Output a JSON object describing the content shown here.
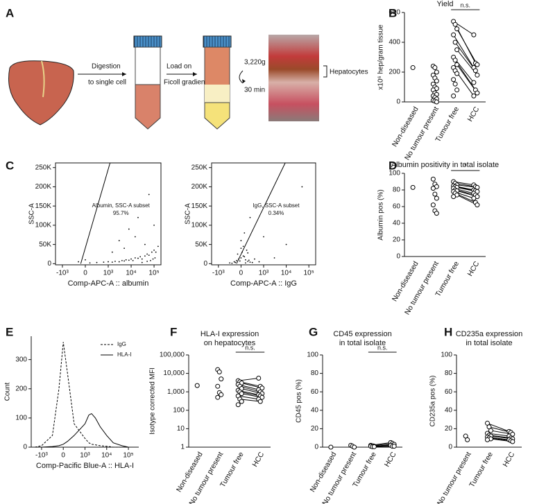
{
  "panel_labels": [
    "A",
    "B",
    "C",
    "D",
    "E",
    "F",
    "G",
    "H"
  ],
  "diagram": {
    "step1": [
      "Digestion",
      "to single cell"
    ],
    "step2": [
      "Load on",
      "Ficoll gradients"
    ],
    "spin": [
      "3,220g",
      "30 min"
    ],
    "fraction": "Hepatocytes"
  },
  "chart_data": [
    {
      "type": "dot",
      "title": "Yield",
      "ylabel": "x10⁶ hep/gram tissue",
      "categories": [
        "Non-diseased",
        "No tumour present",
        "Tumour free",
        "HCC"
      ],
      "values": [
        [
          230
        ],
        [
          240,
          230,
          200,
          180,
          160,
          140,
          120,
          100,
          90,
          80,
          60,
          50,
          40,
          30,
          20,
          10,
          5,
          0
        ],
        [
          540,
          520,
          490,
          450,
          400,
          350,
          300,
          280,
          250,
          230,
          210,
          190,
          150,
          120,
          80,
          40
        ],
        [
          450,
          260,
          250,
          230,
          210,
          180,
          130,
          80,
          60,
          40
        ]
      ],
      "ylim": [
        0,
        600
      ],
      "yticks": [
        0,
        200,
        400,
        600
      ],
      "paired": true,
      "annotation": "n.s.",
      "marker_color": "#000000"
    },
    {
      "type": "flow",
      "ylabel": "SSC-A",
      "xlabel": "Comp-APC-A :: albumin",
      "gate_label": [
        "Albumin, SSC-A subset",
        "95.7%"
      ],
      "xscale": "biexponential",
      "xlim": [
        -2000,
        200000
      ],
      "xticks": [
        {
          "value": -1000,
          "label": "-10³"
        },
        0,
        {
          "value": 1000,
          "label": "10³"
        },
        {
          "value": 10000,
          "label": "10⁴"
        },
        {
          "value": 100000,
          "label": "10⁵"
        }
      ],
      "ylim": [
        -3000,
        262144
      ],
      "yticks": [
        0,
        {
          "value": 50000,
          "label": "50K"
        },
        {
          "value": 100000,
          "label": "100K"
        },
        {
          "value": 150000,
          "label": "150K"
        },
        {
          "value": 200000,
          "label": "200K"
        },
        {
          "value": 250000,
          "label": "250K"
        }
      ],
      "x": [
        200,
        500,
        800,
        1000,
        1500,
        2000,
        3000,
        4000,
        5000,
        6000,
        8000,
        10000,
        12000,
        15000,
        20000,
        25000,
        30000,
        40000,
        50000,
        60000,
        80000,
        100000,
        120000,
        150000,
        30000,
        50000,
        70000,
        90000,
        110000,
        3000,
        8000,
        20000,
        60000,
        1500,
        5000,
        15000,
        40000,
        100000,
        0,
        -300
      ],
      "y": [
        2000,
        3000,
        4000,
        5000,
        4000,
        6000,
        5000,
        8000,
        7000,
        10000,
        9000,
        12000,
        8000,
        15000,
        14000,
        18000,
        12000,
        20000,
        25000,
        22000,
        30000,
        35000,
        30000,
        45000,
        3000,
        6000,
        8000,
        12000,
        15000,
        60000,
        90000,
        120000,
        180000,
        30000,
        40000,
        70000,
        50000,
        100000,
        10000,
        5000
      ],
      "gate": {
        "x": [
          -200,
          1200,
          200000
        ],
        "y": [
          0,
          262144,
          262144
        ]
      }
    },
    {
      "type": "flow",
      "ylabel": "SSC-A",
      "xlabel": "Comp-APC-A :: IgG",
      "gate_label": [
        "IgG, SSC-A subset",
        "0.34%"
      ],
      "xscale": "biexponential",
      "xlim": [
        -2000,
        200000
      ],
      "xticks": [
        {
          "value": -1000,
          "label": "-10³"
        },
        0,
        {
          "value": 1000,
          "label": "10³"
        },
        {
          "value": 10000,
          "label": "10⁴"
        },
        {
          "value": 100000,
          "label": "10⁵"
        }
      ],
      "ylim": [
        -3000,
        262144
      ],
      "yticks": [
        0,
        {
          "value": 50000,
          "label": "50K"
        },
        {
          "value": 100000,
          "label": "100K"
        },
        {
          "value": 150000,
          "label": "150K"
        },
        {
          "value": 200000,
          "label": "200K"
        },
        {
          "value": 250000,
          "label": "250K"
        }
      ],
      "x": [
        -500,
        -300,
        -200,
        -100,
        0,
        100,
        200,
        300,
        400,
        500,
        -400,
        -150,
        50,
        150,
        250,
        350,
        0,
        100,
        -50,
        200,
        600,
        800,
        -250,
        300,
        0,
        150,
        3000,
        10000,
        50000,
        400,
        1000
      ],
      "y": [
        2000,
        5000,
        8000,
        12000,
        15000,
        20000,
        10000,
        6000,
        4000,
        3000,
        1000,
        25000,
        30000,
        18000,
        35000,
        9000,
        40000,
        45000,
        7000,
        2000,
        12000,
        5000,
        3000,
        28000,
        60000,
        80000,
        15000,
        50000,
        200000,
        120000,
        70000
      ],
      "gate": {
        "x": [
          -200,
          9000,
          200000
        ],
        "y": [
          0,
          262144,
          262144
        ]
      }
    },
    {
      "type": "dot",
      "title": "Albumin positivity in total isolate",
      "ylabel": "Albumin pos (%)",
      "categories": [
        "Non-diseased",
        "No tumour present",
        "Tumour free",
        "HCC"
      ],
      "values": [
        [
          83
        ],
        [
          93,
          87,
          84,
          82,
          75,
          70,
          62,
          55,
          52
        ],
        [
          90,
          88,
          86,
          85,
          84,
          83,
          82,
          80,
          79,
          78,
          76,
          74,
          72
        ],
        [
          86,
          84,
          83,
          80,
          79,
          78,
          76,
          74,
          72,
          70,
          65,
          62
        ]
      ],
      "ylim": [
        0,
        100
      ],
      "yticks": [
        0,
        20,
        40,
        60,
        80,
        100
      ],
      "paired": true,
      "annotation": "*",
      "marker_color": "#000000"
    },
    {
      "type": "line",
      "ylabel": "Count",
      "xlabel": "Comp-Pacific Blue-A :: HLA-I",
      "xscale": "biexponential",
      "xlim": [
        -3000,
        300000
      ],
      "xticks": [
        {
          "value": -1000,
          "label": "-10³"
        },
        0,
        {
          "value": 1000,
          "label": "10³"
        },
        {
          "value": 10000,
          "label": "10⁴"
        },
        {
          "value": 100000,
          "label": "10⁵"
        }
      ],
      "ylim": [
        0,
        380
      ],
      "yticks": [
        0,
        100,
        200,
        300
      ],
      "legend": "top-right",
      "x": [
        -2000,
        -1000,
        -500,
        -200,
        0,
        200,
        500,
        1000,
        1500,
        2000,
        3000,
        5000,
        10000,
        20000,
        50000,
        100000
      ],
      "series": [
        {
          "name": "IgG",
          "color": "#000000",
          "line_style": "dashed",
          "values": [
            0,
            5,
            40,
            200,
            360,
            250,
            80,
            30,
            15,
            10,
            8,
            5,
            3,
            0,
            0,
            0
          ]
        },
        {
          "name": "HLA-I",
          "color": "#000000",
          "line_style": "solid",
          "values": [
            0,
            0,
            2,
            5,
            10,
            20,
            40,
            80,
            110,
            115,
            100,
            70,
            40,
            15,
            5,
            0
          ]
        }
      ]
    },
    {
      "type": "dot",
      "title": [
        "HLA-I expression",
        "on hepatocytes"
      ],
      "ylabel": "Isotype corrected MFI",
      "log": true,
      "categories": [
        "Non-diseased",
        "No tumour present",
        "Tumour free",
        "HCC"
      ],
      "values": [
        [
          2200
        ],
        [
          16000,
          12000,
          5000,
          2000,
          900,
          700,
          500
        ],
        [
          4000,
          3500,
          3000,
          2500,
          2000,
          1500,
          1200,
          1000,
          800,
          600,
          400,
          300,
          200
        ],
        [
          5500,
          2000,
          1600,
          1300,
          1000,
          800,
          700,
          600,
          500,
          400,
          300
        ]
      ],
      "ylim": [
        1,
        100000
      ],
      "yticks": [
        1,
        10,
        100,
        {
          "value": 1000,
          "label": "1,000"
        },
        {
          "value": 10000,
          "label": "10,000"
        },
        {
          "value": 100000,
          "label": "100,000"
        }
      ],
      "paired": true,
      "annotation": "n.s.",
      "marker_color": "#000000"
    },
    {
      "type": "dot",
      "title": [
        "CD45 expression",
        "in total isolate"
      ],
      "ylabel": "CD45 pos (%)",
      "categories": [
        "Non-diseased",
        "No tumour present",
        "Tumour free",
        "HCC"
      ],
      "values": [
        [
          0
        ],
        [
          2,
          1,
          0
        ],
        [
          2,
          1.5,
          1,
          1,
          0.5,
          0.5
        ],
        [
          5,
          4,
          3,
          2,
          1,
          1
        ]
      ],
      "ylim": [
        0,
        100
      ],
      "yticks": [
        0,
        20,
        40,
        60,
        80,
        100
      ],
      "paired": true,
      "annotation": "n.s.",
      "marker_color": "#000000"
    },
    {
      "type": "dot",
      "title": [
        "CD235a expression",
        "in total isolate"
      ],
      "ylabel": "CD235a pos (%)",
      "categories": [
        "No tumour present",
        "Tumour free",
        "HCC"
      ],
      "values": [
        [
          12,
          8
        ],
        [
          26,
          22,
          18,
          15,
          13,
          12,
          11,
          10,
          9,
          8
        ],
        [
          17,
          16,
          14,
          12,
          10,
          9,
          8,
          7,
          6
        ]
      ],
      "ylim": [
        0,
        100
      ],
      "yticks": [
        0,
        20,
        40,
        60,
        80,
        100
      ],
      "paired": true,
      "marker_color": "#000000"
    }
  ]
}
